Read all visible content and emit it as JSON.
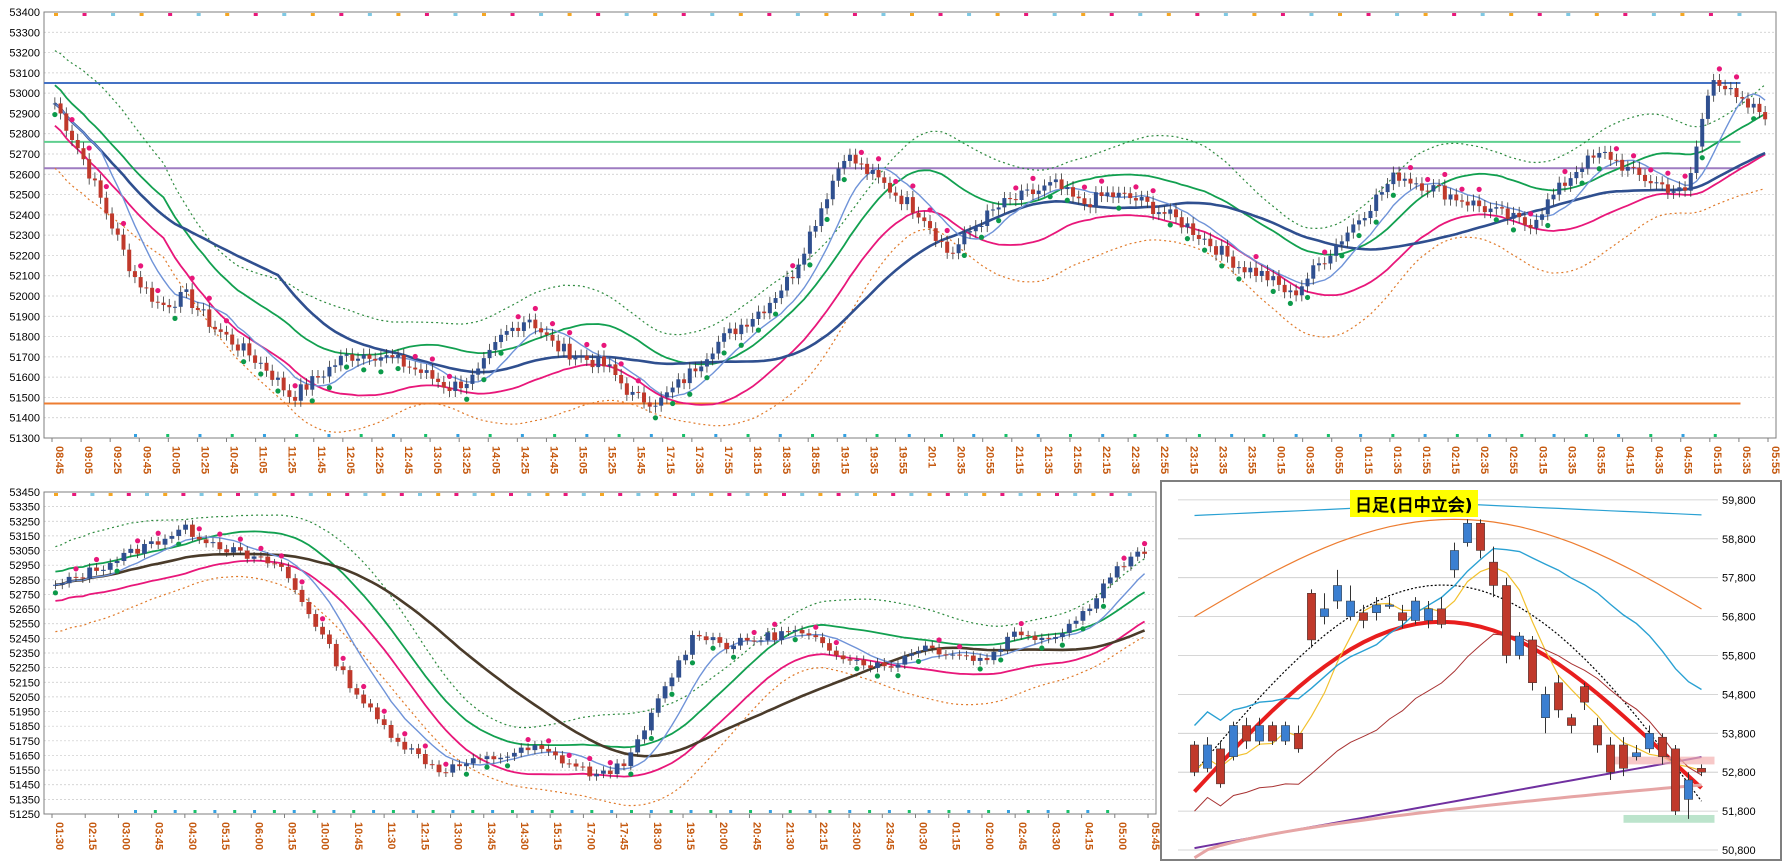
{
  "chart_data": [
    {
      "id": "intraday-5min",
      "type": "candlestick",
      "y_ticks": [
        53400,
        53300,
        53200,
        53100,
        53000,
        52900,
        52800,
        52700,
        52600,
        52500,
        52400,
        52300,
        52200,
        52100,
        52000,
        51900,
        51800,
        51700,
        51600,
        51500,
        51400,
        51300
      ],
      "ylim": [
        51300,
        53400
      ],
      "x_ticks": [
        "08:45",
        "09:05",
        "09:25",
        "09:45",
        "10:05",
        "10:25",
        "10:45",
        "11:05",
        "11:25",
        "11:45",
        "12:05",
        "12:25",
        "12:45",
        "13:05",
        "13:25",
        "14:05",
        "14:25",
        "14:45",
        "15:05",
        "15:25",
        "15:45",
        "17:15",
        "17:35",
        "17:55",
        "18:15",
        "18:35",
        "18:55",
        "19:15",
        "19:35",
        "19:55",
        "20:1",
        "20:35",
        "20:55",
        "21:15",
        "21:35",
        "21:55",
        "22:15",
        "22:35",
        "22:55",
        "23:15",
        "23:35",
        "23:55",
        "00:15",
        "00:35",
        "00:55",
        "01:15",
        "01:35",
        "01:55",
        "02:15",
        "02:35",
        "02:55",
        "03:15",
        "03:35",
        "03:55",
        "04:15",
        "04:35",
        "04:55",
        "05:15",
        "05:35",
        "05:55"
      ],
      "price_path": [
        52950,
        52700,
        52400,
        52100,
        51950,
        52000,
        51850,
        51750,
        51650,
        51500,
        51600,
        51700,
        51720,
        51680,
        51620,
        51550,
        51600,
        51800,
        51900,
        51750,
        51700,
        51650,
        51500,
        51480,
        51600,
        51750,
        51850,
        51950,
        52100,
        52400,
        52700,
        52600,
        52500,
        52400,
        52200,
        52350,
        52450,
        52500,
        52550,
        52450,
        52500,
        52480,
        52420,
        52350,
        52250,
        52150,
        52100,
        52000,
        52150,
        52300,
        52450,
        52600,
        52550,
        52500,
        52450,
        52400,
        52350,
        52500,
        52650,
        52700,
        52600,
        52550,
        52500,
        53100,
        52950,
        52900
      ],
      "overlays": {
        "horizontal_levels": [
          {
            "value": 53050,
            "color": "#4472c4"
          },
          {
            "value": 52630,
            "color": "#9e7cc1"
          },
          {
            "value": 52760,
            "color": "#5fcf8f"
          },
          {
            "value": 51470,
            "color": "#ed7d31"
          }
        ]
      }
    },
    {
      "id": "intraday-15min",
      "type": "candlestick",
      "y_ticks": [
        53450,
        53350,
        53250,
        53150,
        53050,
        52950,
        52850,
        52750,
        52650,
        52550,
        52450,
        52350,
        52250,
        52150,
        52050,
        51950,
        51850,
        51750,
        51650,
        51550,
        51450,
        51350,
        51250
      ],
      "ylim": [
        51250,
        53450
      ],
      "x_ticks": [
        "01:30",
        "02:15",
        "03:00",
        "03:45",
        "04:30",
        "05:15",
        "06:00",
        "09:15",
        "10:00",
        "10:45",
        "11:30",
        "12:15",
        "13:00",
        "13:45",
        "14:30",
        "15:15",
        "17:00",
        "17:45",
        "18:30",
        "19:15",
        "20:00",
        "20:45",
        "21:30",
        "22:15",
        "23:00",
        "23:45",
        "00:30",
        "01:15",
        "02:00",
        "02:45",
        "03:30",
        "04:15",
        "05:00",
        "05:45"
      ],
      "price_path": [
        52800,
        52900,
        53000,
        53100,
        53200,
        53100,
        53000,
        52950,
        52600,
        52200,
        51900,
        51700,
        51550,
        51600,
        51650,
        51700,
        51600,
        51500,
        51650,
        52100,
        52500,
        52400,
        52450,
        52500,
        52400,
        52300,
        52250,
        52400,
        52350,
        52300,
        52500,
        52450,
        52600,
        52900,
        53050
      ]
    },
    {
      "id": "daily",
      "type": "candlestick",
      "title": "日足(日中立会)",
      "y_ticks": [
        59800,
        58800,
        57800,
        56800,
        55800,
        54800,
        53800,
        52800,
        51800,
        50800
      ],
      "y_tick_labels": [
        "59,800",
        "58,800",
        "57,800",
        "56,800",
        "55,800",
        "54,800",
        "53,800",
        "52,800",
        "51,800",
        "50,800"
      ],
      "ylim": [
        50800,
        59900
      ],
      "candles": [
        {
          "o": 53500,
          "c": 52800,
          "h": 53600,
          "l": 52700
        },
        {
          "o": 52900,
          "c": 53500,
          "h": 53700,
          "l": 52800
        },
        {
          "o": 53400,
          "c": 52500,
          "h": 53600,
          "l": 52400
        },
        {
          "o": 53200,
          "c": 54000,
          "h": 54100,
          "l": 53100
        },
        {
          "o": 54000,
          "c": 53600,
          "h": 54200,
          "l": 53400
        },
        {
          "o": 53600,
          "c": 54000,
          "h": 54200,
          "l": 53500
        },
        {
          "o": 54000,
          "c": 53600,
          "h": 54100,
          "l": 53500
        },
        {
          "o": 53600,
          "c": 54000,
          "h": 54100,
          "l": 53500
        },
        {
          "o": 53800,
          "c": 53400,
          "h": 54000,
          "l": 53300
        },
        {
          "o": 57400,
          "c": 56200,
          "h": 57500,
          "l": 56000
        },
        {
          "o": 56800,
          "c": 57000,
          "h": 57400,
          "l": 56600
        },
        {
          "o": 57200,
          "c": 57600,
          "h": 58000,
          "l": 57000
        },
        {
          "o": 56800,
          "c": 57200,
          "h": 57600,
          "l": 56700
        },
        {
          "o": 56900,
          "c": 56700,
          "h": 57100,
          "l": 56500
        },
        {
          "o": 56900,
          "c": 57100,
          "h": 57300,
          "l": 56700
        },
        {
          "o": 57100,
          "c": 57100,
          "h": 57300,
          "l": 57000
        },
        {
          "o": 56900,
          "c": 56700,
          "h": 57100,
          "l": 56500
        },
        {
          "o": 56700,
          "c": 57200,
          "h": 57300,
          "l": 56600
        },
        {
          "o": 56700,
          "c": 57000,
          "h": 57200,
          "l": 56500
        },
        {
          "o": 57000,
          "c": 56600,
          "h": 57300,
          "l": 56500
        },
        {
          "o": 58000,
          "c": 58500,
          "h": 58700,
          "l": 57800
        },
        {
          "o": 58700,
          "c": 59200,
          "h": 59300,
          "l": 58600
        },
        {
          "o": 59200,
          "c": 58500,
          "h": 59300,
          "l": 58300
        },
        {
          "o": 58200,
          "c": 57600,
          "h": 58600,
          "l": 57300
        },
        {
          "o": 57600,
          "c": 55800,
          "h": 57800,
          "l": 55600
        },
        {
          "o": 55800,
          "c": 56300,
          "h": 56400,
          "l": 55700
        },
        {
          "o": 56200,
          "c": 55100,
          "h": 56300,
          "l": 54900
        },
        {
          "o": 54200,
          "c": 54800,
          "h": 55000,
          "l": 53800
        },
        {
          "o": 55100,
          "c": 54400,
          "h": 55300,
          "l": 54200
        },
        {
          "o": 54200,
          "c": 54000,
          "h": 54300,
          "l": 53800
        },
        {
          "o": 55000,
          "c": 54600,
          "h": 55100,
          "l": 54400
        },
        {
          "o": 54000,
          "c": 53500,
          "h": 54200,
          "l": 53300
        },
        {
          "o": 53500,
          "c": 52800,
          "h": 53700,
          "l": 52600
        },
        {
          "o": 53500,
          "c": 52900,
          "h": 53700,
          "l": 52700
        },
        {
          "o": 53200,
          "c": 53300,
          "h": 53500,
          "l": 53100
        },
        {
          "o": 53400,
          "c": 53800,
          "h": 54000,
          "l": 53300
        },
        {
          "o": 53700,
          "c": 53200,
          "h": 53800,
          "l": 53000
        },
        {
          "o": 53400,
          "c": 51800,
          "h": 53500,
          "l": 51700
        },
        {
          "o": 52100,
          "c": 52600,
          "h": 52800,
          "l": 51600
        },
        {
          "o": 52900,
          "c": 52800,
          "h": 53000,
          "l": 52700
        }
      ]
    }
  ]
}
